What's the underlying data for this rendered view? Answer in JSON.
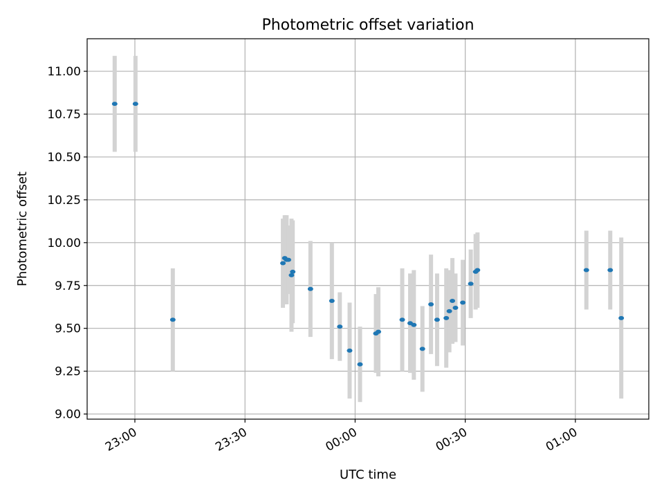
{
  "chart_data": {
    "type": "scatter",
    "title": "Photometric offset variation",
    "xlabel": "UTC time",
    "ylabel": "Photometric offset",
    "x_ticks": [
      "23:00",
      "23:30",
      "00:00",
      "00:30",
      "01:00"
    ],
    "y_ticks": [
      "9.00",
      "9.25",
      "9.50",
      "9.75",
      "10.00",
      "10.25",
      "10.50",
      "10.75",
      "11.00"
    ],
    "xlim": [
      "22:47",
      "01:20"
    ],
    "ylim": [
      8.97,
      11.19
    ],
    "grid": true,
    "colors": {
      "point": "#1f77b4",
      "errorbar": "#d3d3d3",
      "grid": "#b0b0b0"
    },
    "points": [
      {
        "t": "22:54:30",
        "y": 10.81,
        "err": 0.28
      },
      {
        "t": "23:00:10",
        "y": 10.81,
        "err": 0.28
      },
      {
        "t": "23:10:20",
        "y": 9.55,
        "err": 0.3
      },
      {
        "t": "23:40:20",
        "y": 9.88,
        "err": 0.26
      },
      {
        "t": "23:40:50",
        "y": 9.91,
        "err": 0.25
      },
      {
        "t": "23:41:20",
        "y": 9.9,
        "err": 0.26
      },
      {
        "t": "23:41:50",
        "y": 9.9,
        "err": 0.2
      },
      {
        "t": "23:42:40",
        "y": 9.81,
        "err": 0.33
      },
      {
        "t": "23:43:00",
        "y": 9.83,
        "err": 0.3
      },
      {
        "t": "23:47:50",
        "y": 9.73,
        "err": 0.28
      },
      {
        "t": "23:53:40",
        "y": 9.66,
        "err": 0.34
      },
      {
        "t": "23:55:50",
        "y": 9.51,
        "err": 0.2
      },
      {
        "t": "23:58:30",
        "y": 9.37,
        "err": 0.28
      },
      {
        "t": "00:01:20",
        "y": 9.29,
        "err": 0.22
      },
      {
        "t": "00:05:40",
        "y": 9.47,
        "err": 0.23
      },
      {
        "t": "00:06:20",
        "y": 9.48,
        "err": 0.26
      },
      {
        "t": "00:12:50",
        "y": 9.55,
        "err": 0.3
      },
      {
        "t": "00:15:00",
        "y": 9.53,
        "err": 0.29
      },
      {
        "t": "00:16:00",
        "y": 9.52,
        "err": 0.32
      },
      {
        "t": "00:18:20",
        "y": 9.38,
        "err": 0.25
      },
      {
        "t": "00:20:40",
        "y": 9.64,
        "err": 0.29
      },
      {
        "t": "00:22:20",
        "y": 9.55,
        "err": 0.27
      },
      {
        "t": "00:24:50",
        "y": 9.56,
        "err": 0.29
      },
      {
        "t": "00:25:40",
        "y": 9.6,
        "err": 0.24
      },
      {
        "t": "00:26:30",
        "y": 9.66,
        "err": 0.25
      },
      {
        "t": "00:27:20",
        "y": 9.62,
        "err": 0.2
      },
      {
        "t": "00:29:20",
        "y": 9.65,
        "err": 0.25
      },
      {
        "t": "00:31:30",
        "y": 9.76,
        "err": 0.2
      },
      {
        "t": "00:32:50",
        "y": 9.83,
        "err": 0.22
      },
      {
        "t": "00:33:20",
        "y": 9.84,
        "err": 0.22
      },
      {
        "t": "01:03:00",
        "y": 9.84,
        "err": 0.23
      },
      {
        "t": "01:09:30",
        "y": 9.84,
        "err": 0.23
      },
      {
        "t": "01:12:30",
        "y": 9.56,
        "err": 0.47
      }
    ]
  }
}
